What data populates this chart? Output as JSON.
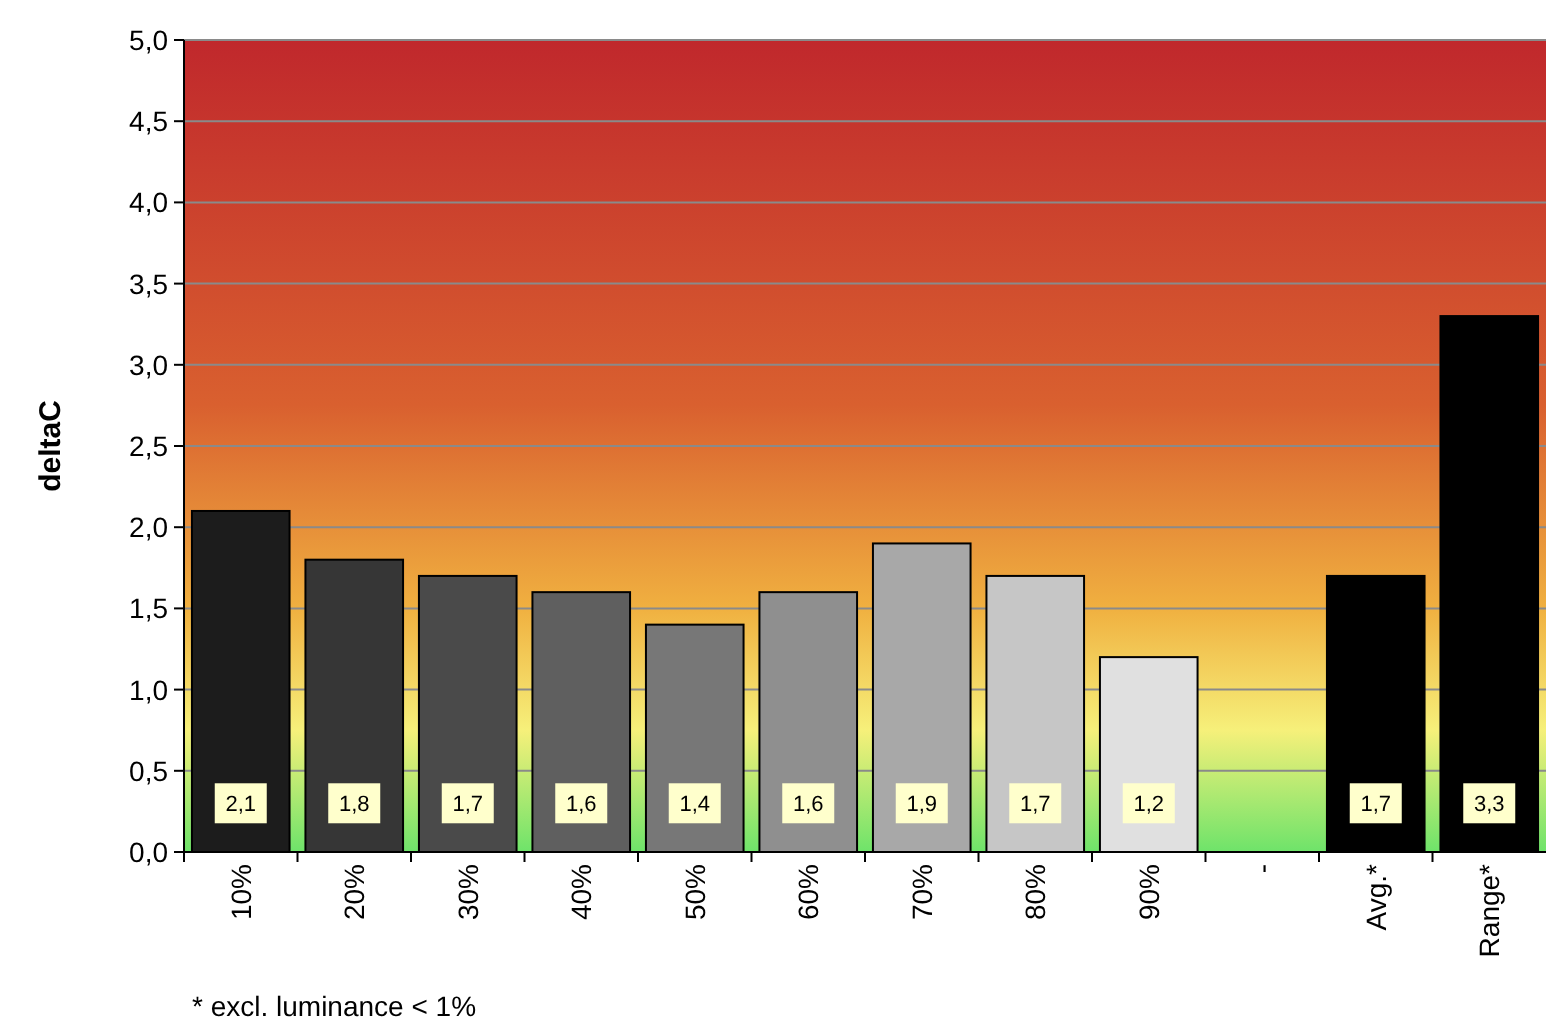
{
  "chart_data": {
    "type": "bar",
    "ylabel": "deltaC",
    "categories": [
      "10%",
      "20%",
      "30%",
      "40%",
      "50%",
      "60%",
      "70%",
      "80%",
      "90%",
      "-",
      "Avg.*",
      "Range*"
    ],
    "values": [
      2.1,
      1.8,
      1.7,
      1.6,
      1.4,
      1.6,
      1.9,
      1.7,
      1.2,
      null,
      1.7,
      3.3
    ],
    "colors": [
      "#1c1c1c",
      "#363636",
      "#4a4a4a",
      "#5f5f5f",
      "#777777",
      "#8f8f8f",
      "#a8a8a8",
      "#c6c6c6",
      "#e0e0e0",
      null,
      "#000000",
      "#000000"
    ],
    "data_labels": true,
    "value_labels": [
      "2,1",
      "1,8",
      "1,7",
      "1,6",
      "1,4",
      "1,6",
      "1,9",
      "1,7",
      "1,2",
      null,
      "1,7",
      "3,3"
    ],
    "ylim": [
      0,
      5
    ],
    "yticks": [
      {
        "value": 0,
        "label": "0,0"
      },
      {
        "value": 0.5,
        "label": "0,5"
      },
      {
        "value": 1,
        "label": "1,0"
      },
      {
        "value": 1.5,
        "label": "1,5"
      },
      {
        "value": 2,
        "label": "2,0"
      },
      {
        "value": 2.5,
        "label": "2,5"
      },
      {
        "value": 3,
        "label": "3,0"
      },
      {
        "value": 3.5,
        "label": "3,5"
      },
      {
        "value": 4,
        "label": "4,0"
      },
      {
        "value": 4.5,
        "label": "4,5"
      },
      {
        "value": 5,
        "label": "5,0"
      }
    ],
    "grid": "y",
    "annotations": [
      "* excl. luminance < 1%"
    ]
  }
}
